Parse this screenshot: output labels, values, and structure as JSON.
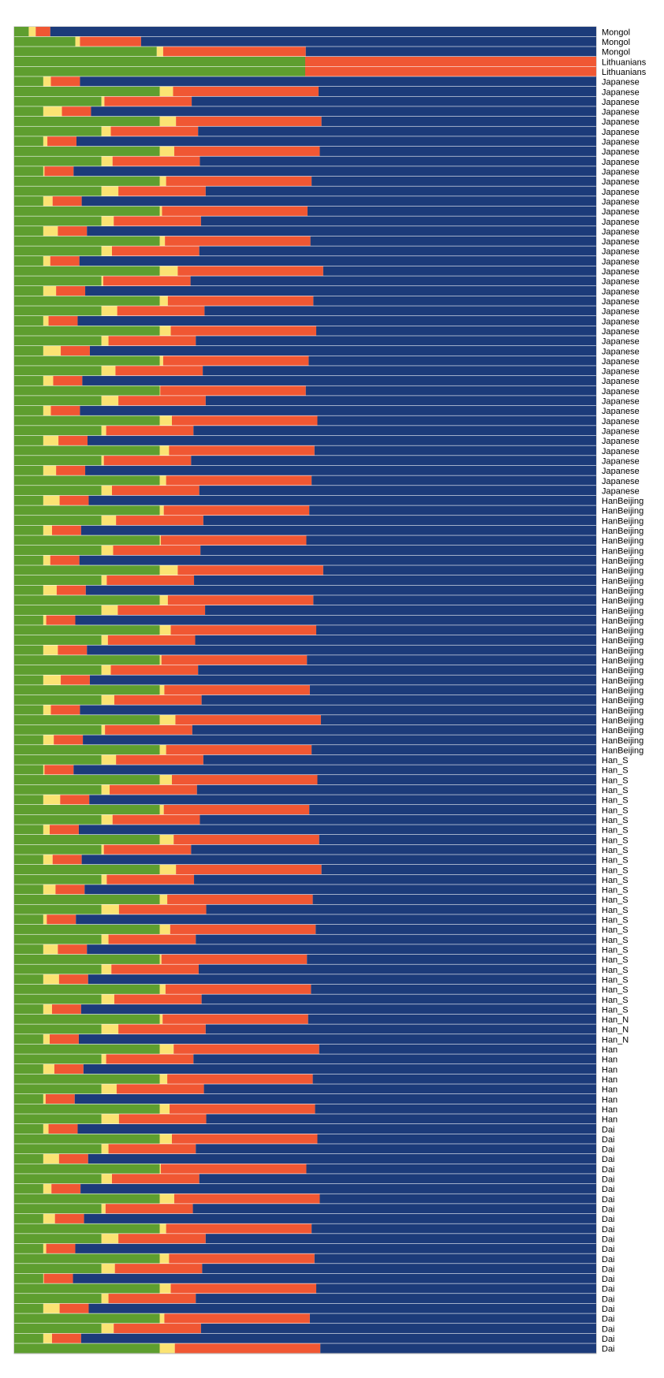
{
  "chart_data": {
    "type": "bar",
    "orientation": "horizontal",
    "stacked": true,
    "x_range": [
      0,
      1
    ],
    "components": [
      {
        "key": "green",
        "color": "#5e9e2f"
      },
      {
        "key": "yellow",
        "color": "#fbe373"
      },
      {
        "key": "red",
        "color": "#f05733"
      },
      {
        "key": "blue",
        "color": "#1c3b7a"
      }
    ],
    "populations": [
      {
        "label": "Mongol",
        "n": 1,
        "x": 0.025,
        "spread": 0.012
      },
      {
        "label": "Mongol",
        "n": 1,
        "x": 0.105,
        "spread": 0.008
      },
      {
        "label": "Mongol",
        "n": 1,
        "x": 0.245,
        "spread": 0.011
      },
      {
        "label": "Lithuanians",
        "n": 1,
        "x": 0.5,
        "spread": 0
      },
      {
        "label": "Lithuanians",
        "n": 1,
        "x": 0.5,
        "spread": 0
      },
      {
        "label": "Japanese",
        "n": 1,
        "x": 0.05,
        "spread": 0.013
      },
      {
        "label": "Japanese",
        "n": 1,
        "x": 0.25,
        "spread": 0.023
      },
      {
        "label": "Japanese",
        "n": 1,
        "x": 0.15,
        "spread": 0.005
      },
      {
        "label": "Japanese",
        "n": 1,
        "x": 0.05,
        "spread": 0.032
      },
      {
        "label": "Japanese",
        "n": 1,
        "x": 0.25,
        "spread": 0.028
      },
      {
        "label": "Japanese",
        "n": 1,
        "x": 0.15,
        "spread": 0.016
      },
      {
        "label": "Japanese",
        "n": 1,
        "x": 0.05,
        "spread": 0.007
      },
      {
        "label": "Japanese",
        "n": 1,
        "x": 0.25,
        "spread": 0.025
      },
      {
        "label": "Japanese",
        "n": 1,
        "x": 0.15,
        "spread": 0.019
      },
      {
        "label": "Japanese",
        "n": 1,
        "x": 0.05,
        "spread": 0.002
      },
      {
        "label": "Japanese",
        "n": 1,
        "x": 0.25,
        "spread": 0.011
      },
      {
        "label": "Japanese",
        "n": 1,
        "x": 0.15,
        "spread": 0.029
      },
      {
        "label": "Japanese",
        "n": 1,
        "x": 0.05,
        "spread": 0.016
      },
      {
        "label": "Japanese",
        "n": 1,
        "x": 0.25,
        "spread": 0.004
      },
      {
        "label": "Japanese",
        "n": 1,
        "x": 0.15,
        "spread": 0.021
      },
      {
        "label": "Japanese",
        "n": 1,
        "x": 0.05,
        "spread": 0.025
      },
      {
        "label": "Japanese",
        "n": 1,
        "x": 0.25,
        "spread": 0.009
      },
      {
        "label": "Japanese",
        "n": 1,
        "x": 0.15,
        "spread": 0.018
      },
      {
        "label": "Japanese",
        "n": 1,
        "x": 0.05,
        "spread": 0.012
      },
      {
        "label": "Japanese",
        "n": 1,
        "x": 0.25,
        "spread": 0.031
      },
      {
        "label": "Japanese",
        "n": 1,
        "x": 0.15,
        "spread": 0.003
      },
      {
        "label": "Japanese",
        "n": 1,
        "x": 0.05,
        "spread": 0.022
      },
      {
        "label": "Japanese",
        "n": 1,
        "x": 0.25,
        "spread": 0.014
      },
      {
        "label": "Japanese",
        "n": 1,
        "x": 0.15,
        "spread": 0.027
      },
      {
        "label": "Japanese",
        "n": 1,
        "x": 0.05,
        "spread": 0.009
      },
      {
        "label": "Japanese",
        "n": 1,
        "x": 0.25,
        "spread": 0.019
      },
      {
        "label": "Japanese",
        "n": 1,
        "x": 0.15,
        "spread": 0.012
      },
      {
        "label": "Japanese",
        "n": 1,
        "x": 0.05,
        "spread": 0.03
      },
      {
        "label": "Japanese",
        "n": 1,
        "x": 0.25,
        "spread": 0.006
      },
      {
        "label": "Japanese",
        "n": 1,
        "x": 0.15,
        "spread": 0.024
      },
      {
        "label": "Japanese",
        "n": 1,
        "x": 0.05,
        "spread": 0.017
      },
      {
        "label": "Japanese",
        "n": 1,
        "x": 0.25,
        "spread": 0.001
      },
      {
        "label": "Japanese",
        "n": 1,
        "x": 0.15,
        "spread": 0.029
      },
      {
        "label": "Japanese",
        "n": 1,
        "x": 0.05,
        "spread": 0.013
      },
      {
        "label": "Japanese",
        "n": 1,
        "x": 0.25,
        "spread": 0.021
      },
      {
        "label": "Japanese",
        "n": 1,
        "x": 0.15,
        "spread": 0.008
      },
      {
        "label": "Japanese",
        "n": 1,
        "x": 0.05,
        "spread": 0.026
      },
      {
        "label": "Japanese",
        "n": 1,
        "x": 0.25,
        "spread": 0.016
      },
      {
        "label": "Japanese",
        "n": 1,
        "x": 0.15,
        "spread": 0.004
      },
      {
        "label": "Japanese",
        "n": 1,
        "x": 0.05,
        "spread": 0.022
      },
      {
        "label": "Japanese",
        "n": 1,
        "x": 0.25,
        "spread": 0.011
      },
      {
        "label": "Japanese",
        "n": 1,
        "x": 0.15,
        "spread": 0.018
      },
      {
        "label": "HanBeijing",
        "n": 1,
        "x": 0.05,
        "spread": 0.028
      },
      {
        "label": "HanBeijing",
        "n": 1,
        "x": 0.25,
        "spread": 0.007
      },
      {
        "label": "HanBeijing",
        "n": 1,
        "x": 0.15,
        "spread": 0.025
      },
      {
        "label": "HanBeijing",
        "n": 1,
        "x": 0.05,
        "spread": 0.015
      },
      {
        "label": "HanBeijing",
        "n": 1,
        "x": 0.25,
        "spread": 0.002
      },
      {
        "label": "HanBeijing",
        "n": 1,
        "x": 0.15,
        "spread": 0.02
      },
      {
        "label": "HanBeijing",
        "n": 1,
        "x": 0.05,
        "spread": 0.012
      },
      {
        "label": "HanBeijing",
        "n": 1,
        "x": 0.25,
        "spread": 0.031
      },
      {
        "label": "HanBeijing",
        "n": 1,
        "x": 0.15,
        "spread": 0.009
      },
      {
        "label": "HanBeijing",
        "n": 1,
        "x": 0.05,
        "spread": 0.023
      },
      {
        "label": "HanBeijing",
        "n": 1,
        "x": 0.25,
        "spread": 0.014
      },
      {
        "label": "HanBeijing",
        "n": 1,
        "x": 0.15,
        "spread": 0.028
      },
      {
        "label": "HanBeijing",
        "n": 1,
        "x": 0.05,
        "spread": 0.005
      },
      {
        "label": "HanBeijing",
        "n": 1,
        "x": 0.25,
        "spread": 0.019
      },
      {
        "label": "HanBeijing",
        "n": 1,
        "x": 0.15,
        "spread": 0.011
      },
      {
        "label": "HanBeijing",
        "n": 1,
        "x": 0.05,
        "spread": 0.025
      },
      {
        "label": "HanBeijing",
        "n": 1,
        "x": 0.25,
        "spread": 0.003
      },
      {
        "label": "HanBeijing",
        "n": 1,
        "x": 0.15,
        "spread": 0.016
      },
      {
        "label": "HanBeijing",
        "n": 1,
        "x": 0.05,
        "spread": 0.03
      },
      {
        "label": "HanBeijing",
        "n": 1,
        "x": 0.25,
        "spread": 0.008
      },
      {
        "label": "HanBeijing",
        "n": 1,
        "x": 0.15,
        "spread": 0.022
      },
      {
        "label": "HanBeijing",
        "n": 1,
        "x": 0.05,
        "spread": 0.013
      },
      {
        "label": "HanBeijing",
        "n": 1,
        "x": 0.25,
        "spread": 0.027
      },
      {
        "label": "HanBeijing",
        "n": 1,
        "x": 0.15,
        "spread": 0.006
      },
      {
        "label": "HanBeijing",
        "n": 1,
        "x": 0.05,
        "spread": 0.018
      },
      {
        "label": "HanBeijing",
        "n": 1,
        "x": 0.25,
        "spread": 0.011
      },
      {
        "label": "Han_S",
        "n": 1,
        "x": 0.15,
        "spread": 0.025
      },
      {
        "label": "Han_S",
        "n": 1,
        "x": 0.05,
        "spread": 0.002
      },
      {
        "label": "Han_S",
        "n": 1,
        "x": 0.25,
        "spread": 0.021
      },
      {
        "label": "Han_S",
        "n": 1,
        "x": 0.15,
        "spread": 0.014
      },
      {
        "label": "Han_S",
        "n": 1,
        "x": 0.05,
        "spread": 0.029
      },
      {
        "label": "Han_S",
        "n": 1,
        "x": 0.25,
        "spread": 0.007
      },
      {
        "label": "Han_S",
        "n": 1,
        "x": 0.15,
        "spread": 0.019
      },
      {
        "label": "Han_S",
        "n": 1,
        "x": 0.05,
        "spread": 0.011
      },
      {
        "label": "Han_S",
        "n": 1,
        "x": 0.25,
        "spread": 0.024
      },
      {
        "label": "Han_S",
        "n": 1,
        "x": 0.15,
        "spread": 0.004
      },
      {
        "label": "Han_S",
        "n": 1,
        "x": 0.05,
        "spread": 0.016
      },
      {
        "label": "Han_S",
        "n": 1,
        "x": 0.25,
        "spread": 0.028
      },
      {
        "label": "Han_S",
        "n": 1,
        "x": 0.15,
        "spread": 0.009
      },
      {
        "label": "Han_S",
        "n": 1,
        "x": 0.05,
        "spread": 0.021
      },
      {
        "label": "Han_S",
        "n": 1,
        "x": 0.25,
        "spread": 0.013
      },
      {
        "label": "Han_S",
        "n": 1,
        "x": 0.15,
        "spread": 0.03
      },
      {
        "label": "Han_S",
        "n": 1,
        "x": 0.05,
        "spread": 0.006
      },
      {
        "label": "Han_S",
        "n": 1,
        "x": 0.25,
        "spread": 0.018
      },
      {
        "label": "Han_S",
        "n": 1,
        "x": 0.15,
        "spread": 0.012
      },
      {
        "label": "Han_S",
        "n": 1,
        "x": 0.05,
        "spread": 0.025
      },
      {
        "label": "Han_S",
        "n": 1,
        "x": 0.25,
        "spread": 0.003
      },
      {
        "label": "Han_S",
        "n": 1,
        "x": 0.15,
        "spread": 0.017
      },
      {
        "label": "Han_S",
        "n": 1,
        "x": 0.05,
        "spread": 0.027
      },
      {
        "label": "Han_S",
        "n": 1,
        "x": 0.25,
        "spread": 0.01
      },
      {
        "label": "Han_S",
        "n": 1,
        "x": 0.15,
        "spread": 0.022
      },
      {
        "label": "Han_S",
        "n": 1,
        "x": 0.05,
        "spread": 0.015
      },
      {
        "label": "Han_N",
        "n": 1,
        "x": 0.25,
        "spread": 0.005
      },
      {
        "label": "Han_N",
        "n": 1,
        "x": 0.15,
        "spread": 0.029
      },
      {
        "label": "Han_N",
        "n": 1,
        "x": 0.05,
        "spread": 0.011
      },
      {
        "label": "Han",
        "n": 1,
        "x": 0.25,
        "spread": 0.024
      },
      {
        "label": "Han",
        "n": 1,
        "x": 0.15,
        "spread": 0.008
      },
      {
        "label": "Han",
        "n": 1,
        "x": 0.05,
        "spread": 0.019
      },
      {
        "label": "Han",
        "n": 1,
        "x": 0.25,
        "spread": 0.013
      },
      {
        "label": "Han",
        "n": 1,
        "x": 0.15,
        "spread": 0.026
      },
      {
        "label": "Han",
        "n": 1,
        "x": 0.05,
        "spread": 0.004
      },
      {
        "label": "Han",
        "n": 1,
        "x": 0.25,
        "spread": 0.017
      },
      {
        "label": "Han",
        "n": 1,
        "x": 0.15,
        "spread": 0.03
      },
      {
        "label": "Dai",
        "n": 1,
        "x": 0.05,
        "spread": 0.009
      },
      {
        "label": "Dai",
        "n": 1,
        "x": 0.25,
        "spread": 0.021
      },
      {
        "label": "Dai",
        "n": 1,
        "x": 0.15,
        "spread": 0.012
      },
      {
        "label": "Dai",
        "n": 1,
        "x": 0.05,
        "spread": 0.027
      },
      {
        "label": "Dai",
        "n": 1,
        "x": 0.25,
        "spread": 0.002
      },
      {
        "label": "Dai",
        "n": 1,
        "x": 0.15,
        "spread": 0.018
      },
      {
        "label": "Dai",
        "n": 1,
        "x": 0.05,
        "spread": 0.014
      },
      {
        "label": "Dai",
        "n": 1,
        "x": 0.25,
        "spread": 0.025
      },
      {
        "label": "Dai",
        "n": 1,
        "x": 0.15,
        "spread": 0.007
      },
      {
        "label": "Dai",
        "n": 1,
        "x": 0.05,
        "spread": 0.02
      },
      {
        "label": "Dai",
        "n": 1,
        "x": 0.25,
        "spread": 0.011
      },
      {
        "label": "Dai",
        "n": 1,
        "x": 0.15,
        "spread": 0.029
      },
      {
        "label": "Dai",
        "n": 1,
        "x": 0.05,
        "spread": 0.005
      },
      {
        "label": "Dai",
        "n": 1,
        "x": 0.25,
        "spread": 0.016
      },
      {
        "label": "Dai",
        "n": 1,
        "x": 0.15,
        "spread": 0.023
      },
      {
        "label": "Dai",
        "n": 1,
        "x": 0.05,
        "spread": 0.001
      },
      {
        "label": "Dai",
        "n": 1,
        "x": 0.25,
        "spread": 0.019
      },
      {
        "label": "Dai",
        "n": 1,
        "x": 0.15,
        "spread": 0.012
      },
      {
        "label": "Dai",
        "n": 1,
        "x": 0.05,
        "spread": 0.028
      },
      {
        "label": "Dai",
        "n": 1,
        "x": 0.25,
        "spread": 0.008
      },
      {
        "label": "Dai",
        "n": 1,
        "x": 0.15,
        "spread": 0.021
      },
      {
        "label": "Dai",
        "n": 1,
        "x": 0.05,
        "spread": 0.015
      },
      {
        "label": "Dai",
        "n": 1,
        "x": 0.25,
        "spread": 0.026
      }
    ]
  }
}
